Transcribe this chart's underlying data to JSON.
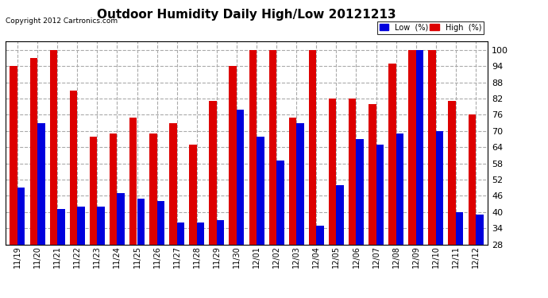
{
  "title": "Outdoor Humidity Daily High/Low 20121213",
  "copyright": "Copyright 2012 Cartronics.com",
  "legend_low": "Low  (%)",
  "legend_high": "High  (%)",
  "low_color": "#0000dd",
  "high_color": "#dd0000",
  "background_color": "#ffffff",
  "grid_color": "#aaaaaa",
  "ylim": [
    28,
    103
  ],
  "yticks": [
    28,
    34,
    40,
    46,
    52,
    58,
    64,
    70,
    76,
    82,
    88,
    94,
    100
  ],
  "bar_width": 0.38,
  "dates": [
    "11/19",
    "11/20",
    "11/21",
    "11/22",
    "11/23",
    "11/24",
    "11/25",
    "11/26",
    "11/27",
    "11/28",
    "11/29",
    "11/30",
    "12/01",
    "12/02",
    "12/03",
    "12/04",
    "12/05",
    "12/06",
    "12/07",
    "12/08",
    "12/09",
    "12/10",
    "12/11",
    "12/12"
  ],
  "high_values": [
    94,
    97,
    100,
    85,
    68,
    69,
    75,
    69,
    73,
    65,
    81,
    94,
    100,
    100,
    75,
    100,
    82,
    82,
    80,
    95,
    100,
    100,
    81,
    76
  ],
  "low_values": [
    49,
    73,
    41,
    42,
    42,
    47,
    45,
    44,
    36,
    36,
    37,
    78,
    68,
    59,
    73,
    35,
    50,
    67,
    65,
    69,
    100,
    70,
    40,
    39
  ]
}
